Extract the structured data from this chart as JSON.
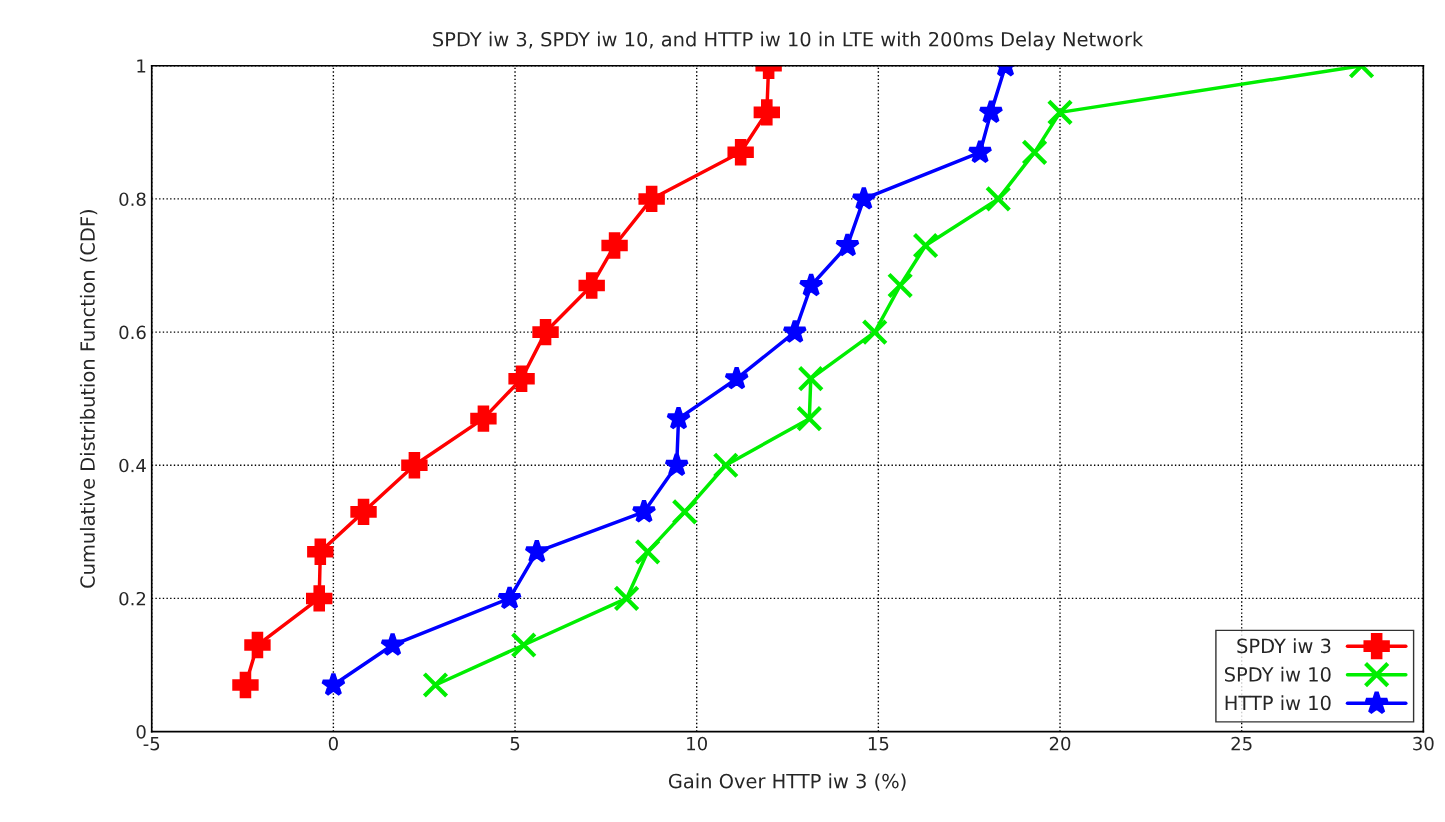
{
  "chart_data": {
    "type": "line",
    "title": "SPDY iw 3, SPDY iw 10, and HTTP iw 10 in LTE with 200ms Delay Network",
    "xlabel": "Gain Over HTTP iw 3 (%)",
    "ylabel": "Cumulative Distribution Function (CDF)",
    "xlim": [
      -5,
      30
    ],
    "xticks": [
      -5,
      0,
      5,
      10,
      15,
      20,
      25,
      30
    ],
    "ylim": [
      0,
      1
    ],
    "yticks": [
      0,
      0.2,
      0.4,
      0.6,
      0.8,
      1
    ],
    "grid": true,
    "legend": "bottom right",
    "line_style": "solid",
    "series": [
      {
        "name": "SPDY iw 3",
        "color": "#ff0000",
        "marker": "cross",
        "x": [
          -2.42,
          -2.09,
          -0.39,
          -0.36,
          0.83,
          2.23,
          4.13,
          5.18,
          5.84,
          7.11,
          7.74,
          8.76,
          11.21,
          11.93,
          11.98
        ],
        "values": [
          0.07,
          0.13,
          0.2,
          0.27,
          0.33,
          0.4,
          0.47,
          0.53,
          0.6,
          0.67,
          0.73,
          0.8,
          0.87,
          0.93,
          1
        ]
      },
      {
        "name": "SPDY iw 10",
        "color": "#00ee00",
        "marker": "cross",
        "x": [
          2.81,
          5.24,
          8.07,
          8.65,
          9.67,
          10.8,
          13.1,
          13.14,
          14.9,
          15.6,
          16.3,
          18.3,
          19.3,
          20.0,
          28.3
        ],
        "values": [
          0.07,
          0.13,
          0.2,
          0.27,
          0.33,
          0.4,
          0.47,
          0.53,
          0.6,
          0.67,
          0.73,
          0.8,
          0.87,
          0.93,
          1
        ]
      },
      {
        "name": "HTTP iw 10",
        "color": "#0000ff",
        "marker": "star",
        "x": [
          0.0,
          1.63,
          4.85,
          5.6,
          8.55,
          9.45,
          9.5,
          11.1,
          12.7,
          13.15,
          14.15,
          14.6,
          17.8,
          18.1,
          18.5
        ],
        "values": [
          0.07,
          0.13,
          0.2,
          0.27,
          0.33,
          0.4,
          0.47,
          0.53,
          0.6,
          0.67,
          0.73,
          0.8,
          0.87,
          0.93,
          1
        ]
      }
    ]
  }
}
